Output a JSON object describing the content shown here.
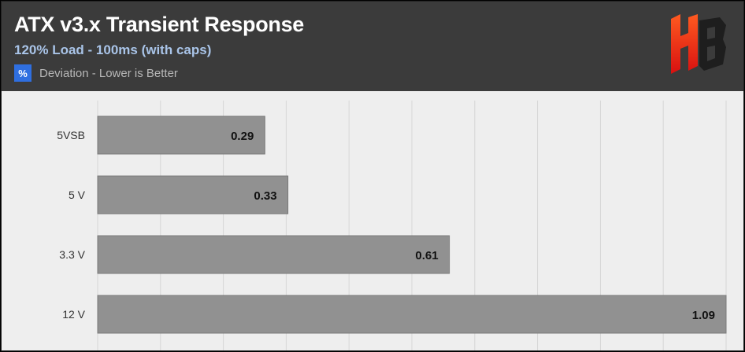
{
  "header": {
    "title": "ATX v3.x Transient Response",
    "subtitle": "120% Load - 100ms (with caps)",
    "legend_symbol": "%",
    "legend_label": "Deviation - Lower is Better"
  },
  "colors": {
    "header_bg": "#3b3b3b",
    "plot_bg": "#eeeeee",
    "bar": "#919191",
    "legend_swatch": "#2f6fe0",
    "subtitle": "#a9c4e8",
    "logo_gradient": [
      "#ff4a1c",
      "#e01010"
    ]
  },
  "logo": {
    "icon": "hb-logo-icon"
  },
  "chart_data": {
    "type": "bar",
    "orientation": "horizontal",
    "title": "ATX v3.x Transient Response",
    "subtitle": "120% Load - 100ms (with caps)",
    "categories": [
      "5VSB",
      "5 V",
      "3.3 V",
      "12 V"
    ],
    "series": [
      {
        "name": "Deviation - Lower is Better",
        "unit": "%",
        "values": [
          0.29,
          0.33,
          0.61,
          1.09
        ]
      }
    ],
    "xlim": [
      0,
      1.09
    ],
    "grid": true,
    "legend_position": "top-left"
  }
}
